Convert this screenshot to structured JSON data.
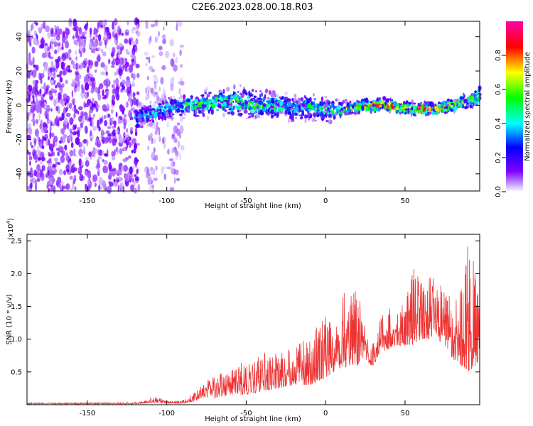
{
  "title": "C2E6.2023.028.00.18.R03",
  "chart_data": [
    {
      "type": "heatmap",
      "title": "C2E6.2023.028.00.18.R03",
      "xlabel": "Height of straight line (km)",
      "ylabel": "Frequency (Hz)",
      "xlim": [
        -188,
        97
      ],
      "ylim": [
        -50,
        49
      ],
      "xticks": [
        -150,
        -100,
        -50,
        0,
        50
      ],
      "xtick_labels": [
        "-150",
        "-100",
        "-50",
        "0",
        "50"
      ],
      "yticks": [
        -40,
        -20,
        0,
        20,
        40
      ],
      "ytick_labels": [
        "-40",
        "-20",
        "0",
        "20",
        "40"
      ],
      "colorbar": {
        "label": "Normalized spectral amplitude",
        "range": [
          0,
          1
        ],
        "ticks": [
          0.0,
          0.2,
          0.4,
          0.6,
          0.8
        ],
        "tick_labels": [
          "0.0",
          "0.2",
          "0.4",
          "0.6",
          "0.8"
        ],
        "colormap": [
          "#ffffff",
          "#7f00ff",
          "#0000ff",
          "#00ffff",
          "#00ff00",
          "#ffff00",
          "#ff0000",
          "#ff00aa"
        ]
      },
      "noise_region_x": [
        -188,
        -90
      ],
      "signal_region_x": [
        -120,
        97
      ],
      "signal_track": {
        "x": [
          -120,
          -110,
          -100,
          -90,
          -80,
          -70,
          -60,
          -50,
          -40,
          -30,
          -20,
          -10,
          0,
          10,
          20,
          30,
          40,
          50,
          60,
          70,
          80,
          90,
          97
        ],
        "y": [
          -8,
          -5,
          -2,
          0,
          0,
          2,
          2,
          1,
          0,
          0,
          -2,
          -1,
          -3,
          -3,
          -1,
          0,
          0,
          -2,
          -2,
          -2,
          0,
          3,
          5
        ],
        "spread_hz": [
          6,
          5,
          5,
          5,
          6,
          6,
          7,
          7,
          7,
          6,
          6,
          6,
          6,
          4,
          3,
          3,
          3,
          3,
          3,
          3,
          3,
          4,
          5
        ],
        "peak_amplitude": [
          0.35,
          0.4,
          0.45,
          0.5,
          0.55,
          0.6,
          0.55,
          0.55,
          0.5,
          0.5,
          0.45,
          0.5,
          0.45,
          0.55,
          0.75,
          0.85,
          0.95,
          0.7,
          0.9,
          0.8,
          0.7,
          0.65,
          0.6
        ]
      }
    },
    {
      "type": "line",
      "xlabel": "Height of straight line (km)",
      "ylabel": "SNR (10 * v/v)",
      "y_multiplier_label": "(x10",
      "y_multiplier_exp": "4",
      "y_multiplier_close": ")",
      "xlim": [
        -188,
        97
      ],
      "ylim": [
        0,
        2.6
      ],
      "xticks": [
        -150,
        -100,
        -50,
        0,
        50
      ],
      "xtick_labels": [
        "-150",
        "-100",
        "-50",
        "0",
        "50"
      ],
      "yticks": [
        0.5,
        1.0,
        1.5,
        2.0,
        2.5
      ],
      "ytick_labels": [
        "0.5",
        "1.0",
        "1.5",
        "2.0",
        "2.5"
      ],
      "color": "#ee3333",
      "envelope": {
        "x": [
          -188,
          -150,
          -120,
          -112,
          -108,
          -100,
          -90,
          -82,
          -78,
          -70,
          -60,
          -50,
          -40,
          -30,
          -20,
          -10,
          0,
          5,
          10,
          15,
          20,
          25,
          28,
          30,
          35,
          40,
          45,
          50,
          55,
          60,
          65,
          70,
          75,
          80,
          85,
          90,
          95,
          97
        ],
        "floor": [
          0.01,
          0.01,
          0.01,
          0.02,
          0.03,
          0.02,
          0.02,
          0.05,
          0.1,
          0.1,
          0.15,
          0.15,
          0.2,
          0.25,
          0.3,
          0.3,
          0.4,
          0.5,
          0.55,
          0.6,
          0.6,
          0.7,
          0.6,
          0.6,
          0.8,
          0.85,
          0.9,
          0.9,
          0.9,
          1.0,
          1.0,
          1.0,
          0.9,
          0.7,
          0.6,
          0.5,
          0.6,
          0.7
        ],
        "peak": [
          0.03,
          0.03,
          0.04,
          0.07,
          0.15,
          0.06,
          0.07,
          0.2,
          0.35,
          0.45,
          0.55,
          0.7,
          0.8,
          0.8,
          0.9,
          1.05,
          1.4,
          1.6,
          1.85,
          1.7,
          1.8,
          1.2,
          0.8,
          1.0,
          1.4,
          1.55,
          1.4,
          1.6,
          2.2,
          1.95,
          2.1,
          1.8,
          1.95,
          1.5,
          2.2,
          2.6,
          2.0,
          2.1
        ]
      }
    }
  ]
}
